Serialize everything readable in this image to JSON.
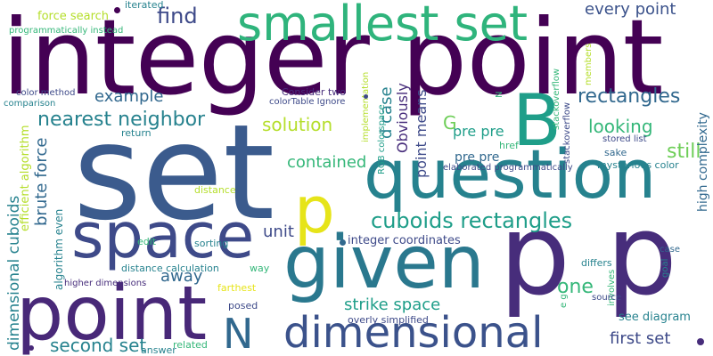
{
  "palette": {
    "dark_purple": "#440154",
    "indigo": "#482878",
    "blue": "#3e4a89",
    "slate_blue": "#31688e",
    "teal": "#26828e",
    "sea_green": "#1f9e89",
    "green": "#35b779",
    "light_green": "#6ece58",
    "lime": "#b5de2b",
    "yellow": "#fde725"
  },
  "words": {
    "integer_point": "integer point",
    "set_big": "set",
    "smallest_set": "smallest set",
    "question": "question",
    "given": "given",
    "p_p": "p p",
    "space": "space",
    "point_big": "point",
    "dimensional_big": "dimensional",
    "B": "B",
    "p_small": "p",
    "N": "N",
    "find": "find",
    "every_point": "every point",
    "nearest_neighbor": "nearest neighbor",
    "example": "example",
    "rectangles": "rectangles",
    "looking": "looking",
    "still": "still",
    "solution": "solution",
    "contained": "contained",
    "cuboids_rectangles": "cuboids rectangles",
    "unit": "unit",
    "away": "away",
    "one": "one",
    "strike_space": "strike space",
    "second_set": "second set",
    "first_set": "first set",
    "pre_pre": "pre pre",
    "G": "G",
    "brute_force": "brute force",
    "dimensional_cuboids": "dimensional cuboids",
    "point_means": "point means",
    "obviously": "Obviously",
    "d_case": "d case",
    "integer_coordinates": "integer coordinates",
    "see_diagram": "see diagram",
    "high_complexity": "high complexity",
    "force_search": "force search",
    "iterated": "iterated",
    "programmatically_instead": "programmatically instead",
    "color_method": "color method",
    "comparison": "comparison",
    "consider_two": "Consider two",
    "colortable_ignore": "colorTable Ignore",
    "implementation": "implementation",
    "rgb_colorspace": "RGB colorspace",
    "stackoverflow": "stackoverflow",
    "stored_list": "stored list",
    "sake": "sake",
    "mysterious_color": "mysterious color",
    "elaborated_programmatically": "elaborated programmatically",
    "href": "href",
    "members": "members",
    "N_small": "N",
    "return": "return",
    "efficient_algorithm": "efficient algorithm",
    "algorithm_even": "algorithm even",
    "distance": "distance",
    "edit": "edit",
    "sorting": "sorting",
    "distance_calculation": "distance calculation",
    "way": "way",
    "farthest": "farthest",
    "posed": "posed",
    "higher_dimensions": "higher dimensions",
    "answer": "answer",
    "related": "related",
    "overly_simplified": "overly simplified",
    "differs": "differs",
    "case": "case",
    "goal": "goal",
    "involves": "involves",
    "source": "source",
    "e_g": "e g"
  }
}
